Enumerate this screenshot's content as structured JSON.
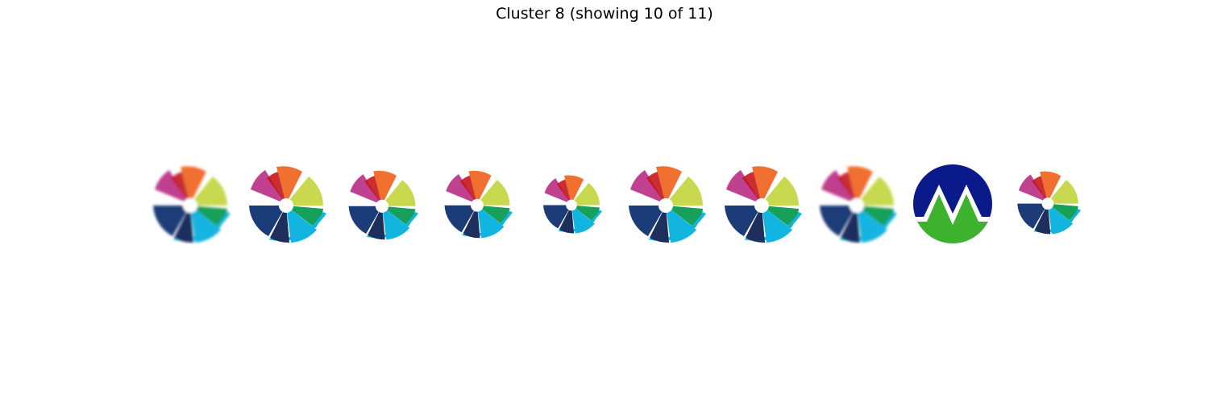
{
  "title": "Cluster 8 (showing 10 of 11)",
  "thumbnails": [
    {
      "logo": "pinwheel-logo",
      "blurred": true
    },
    {
      "logo": "pinwheel-logo",
      "blurred": false
    },
    {
      "logo": "pinwheel-logo",
      "blurred": false
    },
    {
      "logo": "pinwheel-logo",
      "blurred": false
    },
    {
      "logo": "pinwheel-logo",
      "blurred": false
    },
    {
      "logo": "pinwheel-logo",
      "blurred": false
    },
    {
      "logo": "pinwheel-logo",
      "blurred": false
    },
    {
      "logo": "pinwheel-logo",
      "blurred": true
    },
    {
      "logo": "m-mountain-logo",
      "blurred": false
    },
    {
      "logo": "pinwheel-logo",
      "blurred": false
    }
  ],
  "colors": {
    "magenta": "#c0418f",
    "red": "#c4161c",
    "orange": "#f07030",
    "lime": "#c8d94f",
    "green": "#16a05a",
    "cyan": "#12b4e0",
    "navy": "#1e2f5e",
    "blue": "#1b3c78",
    "m_logo_navy": "#0b1a8a",
    "m_logo_green": "#3db22e"
  }
}
